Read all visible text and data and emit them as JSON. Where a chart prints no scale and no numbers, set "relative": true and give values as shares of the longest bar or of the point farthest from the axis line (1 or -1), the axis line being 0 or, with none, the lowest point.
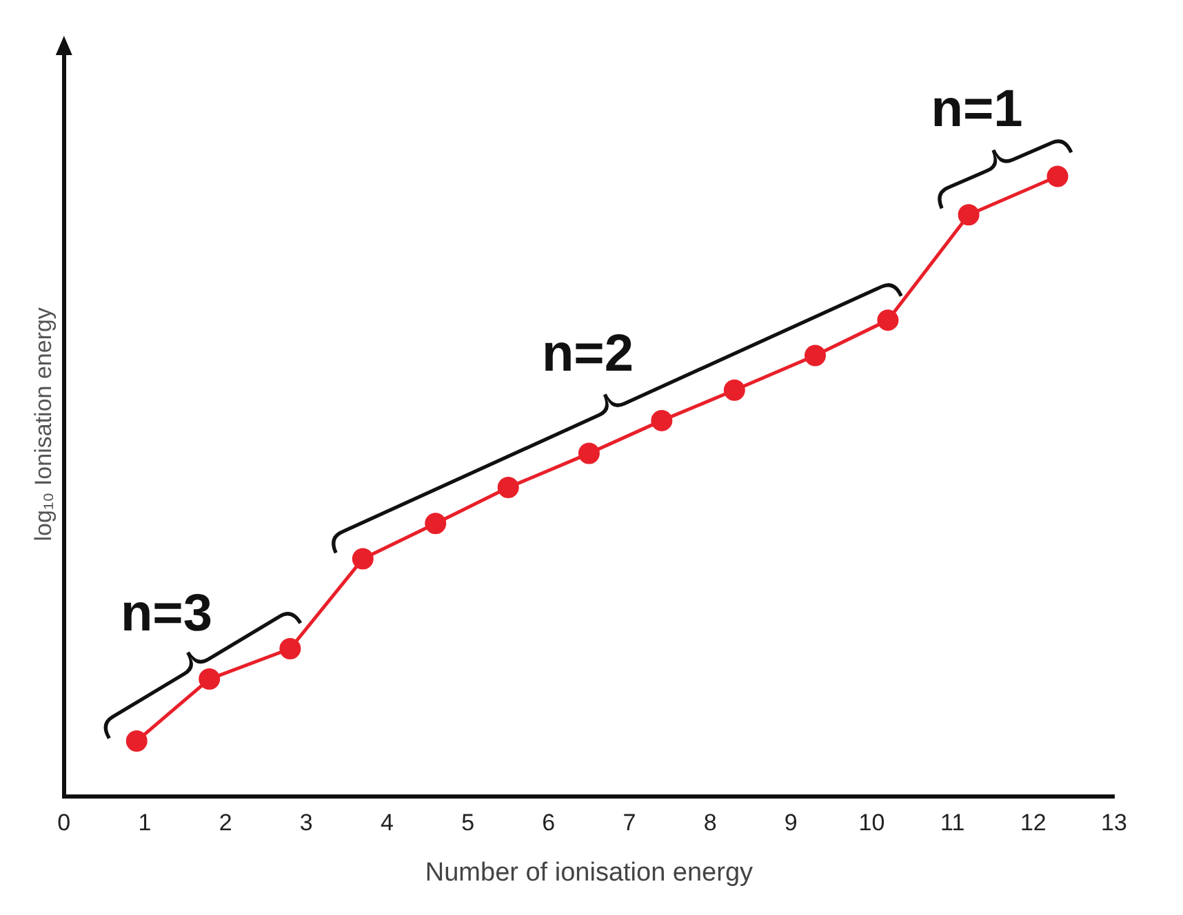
{
  "chart_data": {
    "type": "line",
    "xlabel": "Number of ionisation energy",
    "ylabel": "log₁₀ Ionisation energy",
    "x": [
      0.9,
      1.8,
      2.8,
      3.7,
      4.6,
      5.5,
      6.5,
      7.4,
      8.3,
      9.3,
      10.2,
      11.2,
      12.3
    ],
    "series": [
      {
        "color": "#e8202a",
        "values": [
          0.089,
          0.189,
          0.238,
          0.383,
          0.44,
          0.498,
          0.553,
          0.606,
          0.655,
          0.711,
          0.768,
          0.938,
          1
        ]
      }
    ],
    "relative": true,
    "xlim": [
      0,
      13
    ],
    "xticks": [
      0,
      1,
      2,
      3,
      4,
      5,
      6,
      7,
      8,
      9,
      10,
      11,
      12,
      13
    ],
    "annotations": [
      "n=3",
      "n=2",
      "n=1"
    ],
    "grid": false,
    "legend": false,
    "marker": "circle",
    "line_style": "solid"
  }
}
